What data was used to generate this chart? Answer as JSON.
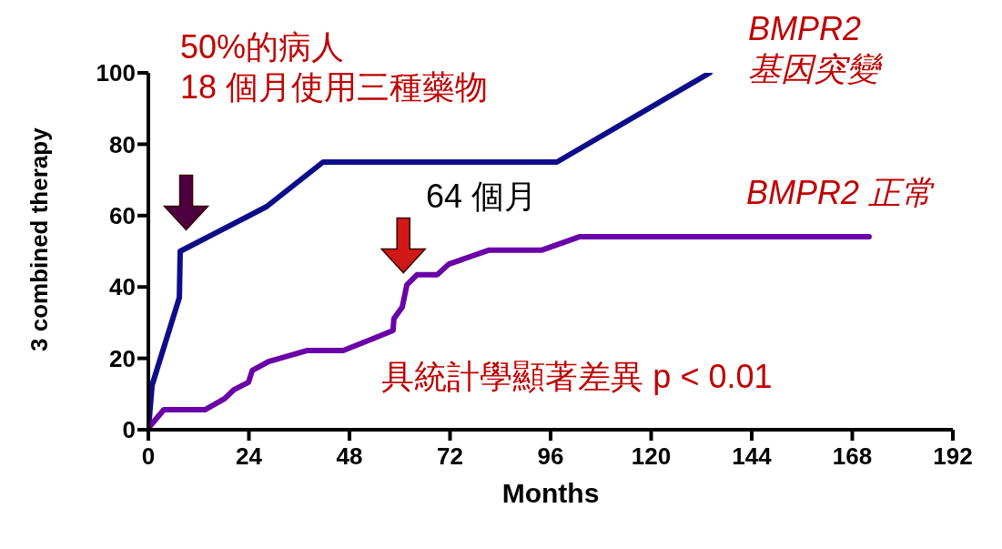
{
  "chart_data": {
    "type": "line",
    "xlabel": "Months",
    "ylabel": "3 combined therapy",
    "xlim": [
      0,
      192
    ],
    "xticks": [
      0,
      24,
      48,
      72,
      96,
      120,
      144,
      168,
      192
    ],
    "ylim": [
      0,
      100
    ],
    "yticks": [
      0,
      20,
      40,
      60,
      80,
      100
    ],
    "grid": false,
    "legend": false,
    "marker": "none",
    "line_style": "solid",
    "series": [
      {
        "name": "BMPR2 基因突變",
        "color": "#0d0d8a",
        "x": [
          0,
          0.9,
          7.4,
          7.6,
          28.2,
          41.7,
          97.5,
          134
        ],
        "values": [
          0,
          12.5,
          37,
          50,
          62.5,
          75,
          75,
          100
        ]
      },
      {
        "name": "BMPR2 正常",
        "color": "#6a00a8",
        "x": [
          0,
          0.4,
          3.7,
          13.5,
          18.2,
          20.4,
          23.9,
          24.8,
          28.7,
          38,
          46.5,
          53.2,
          58.4,
          58.6,
          60.6,
          61.7,
          64.1,
          68.9,
          71.7,
          81.2,
          93.8,
          103,
          172
        ],
        "values": [
          0,
          1,
          5.6,
          5.6,
          8.7,
          11.2,
          13.3,
          16.6,
          19.1,
          22.2,
          22.2,
          25.3,
          27.8,
          31.1,
          34.4,
          40.6,
          43.4,
          43.4,
          46.4,
          50.3,
          50.3,
          54.1,
          54.1
        ]
      }
    ],
    "annotations": [
      "50%的病人",
      "18 個月使用三種藥物",
      "64 個月",
      "具統計學顯著差異 p < 0.01"
    ]
  }
}
